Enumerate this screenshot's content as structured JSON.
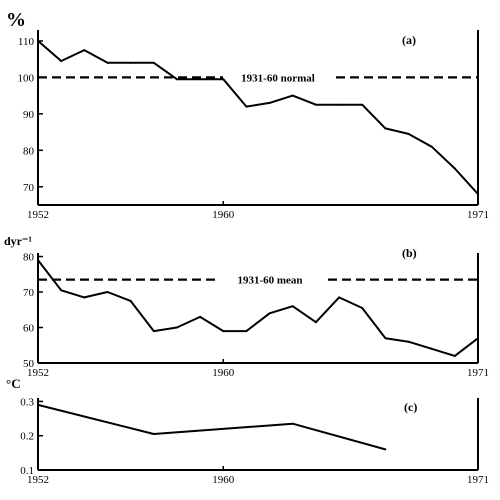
{
  "chart_data": [
    {
      "type": "line",
      "panel_label": "(a)",
      "unit_label": "%",
      "x": [
        1952,
        1953,
        1954,
        1955,
        1956,
        1957,
        1958,
        1959,
        1960,
        1961,
        1962,
        1963,
        1964,
        1965,
        1966,
        1967,
        1968,
        1969,
        1970,
        1971
      ],
      "values": [
        110,
        104.5,
        107.5,
        104,
        104,
        104,
        99.5,
        99.5,
        99.5,
        92,
        93,
        95,
        92.5,
        92.5,
        92.5,
        86,
        84.5,
        81,
        75,
        68
      ],
      "xlim": [
        1952,
        1971
      ],
      "ylim": [
        65,
        113
      ],
      "y_ticks": [
        70,
        80,
        90,
        100,
        110
      ],
      "x_ticks": [
        1952,
        1960,
        1971
      ],
      "reference_line": {
        "value": 100,
        "label": "1931-60 normal"
      }
    },
    {
      "type": "line",
      "panel_label": "(b)",
      "unit_label": "dyr⁻¹",
      "x": [
        1952,
        1953,
        1954,
        1955,
        1956,
        1957,
        1958,
        1959,
        1960,
        1961,
        1962,
        1963,
        1964,
        1965,
        1966,
        1967,
        1968,
        1969,
        1970,
        1971
      ],
      "values": [
        79,
        70.5,
        68.5,
        70,
        67.5,
        59,
        60,
        63,
        59,
        59,
        64,
        66,
        61.5,
        68.5,
        65.5,
        57,
        56,
        54,
        52,
        57
      ],
      "xlim": [
        1952,
        1971
      ],
      "ylim": [
        50,
        81
      ],
      "y_ticks": [
        50,
        60,
        70,
        80
      ],
      "x_ticks": [
        1952,
        1960,
        1971
      ],
      "reference_line": {
        "value": 73.5,
        "label": "1931-60 mean"
      }
    },
    {
      "type": "line",
      "panel_label": "(c)",
      "unit_label": "°C",
      "x": [
        1952,
        1957,
        1963,
        1967
      ],
      "values": [
        0.29,
        0.205,
        0.235,
        0.16
      ],
      "xlim": [
        1952,
        1971
      ],
      "ylim": [
        0.1,
        0.31
      ],
      "y_ticks": [
        0.1,
        0.2,
        0.3
      ],
      "y_tick_labels": [
        "0.1",
        "0.2",
        "0.3"
      ],
      "x_ticks": [
        1952,
        1960,
        1971
      ]
    }
  ]
}
